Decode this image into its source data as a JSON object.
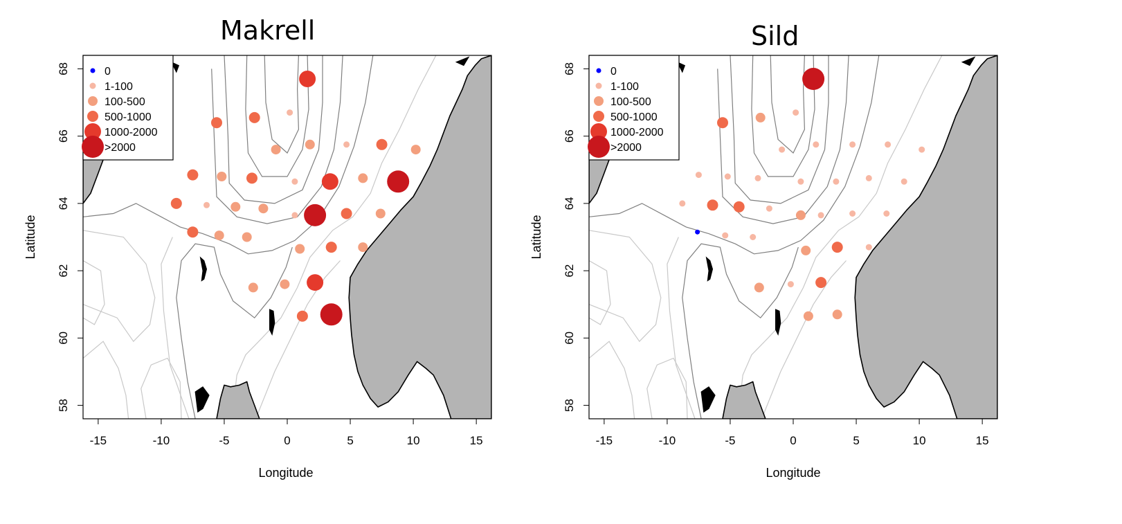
{
  "axes": {
    "xlabel": "Longitude",
    "ylabel": "Latitude",
    "xticks": [
      -15,
      -10,
      -5,
      0,
      5,
      10,
      15
    ],
    "yticks": [
      58,
      60,
      62,
      64,
      66,
      68
    ],
    "xlim": [
      -16.2,
      16.2
    ],
    "ylim": [
      57.6,
      68.4
    ]
  },
  "legend": {
    "position": "top-left",
    "entries": [
      "0",
      "1-100",
      "100-500",
      "500-1000",
      "1000-2000",
      ">2000"
    ]
  },
  "colors": {
    "class_colors": [
      "#0000ff",
      "#f7b7a3",
      "#f39f7e",
      "#f06a4a",
      "#e53a2c",
      "#c8171d"
    ],
    "land": "#b4b4b4",
    "depth_contour_dark": "#7f7f7f",
    "depth_contour_light": "#c8c8c8"
  },
  "maps": [
    {
      "title": "Makrell",
      "stations": [
        {
          "lon": 1.6,
          "lat": 67.7,
          "class": 4
        },
        {
          "lon": -2.6,
          "lat": 66.55,
          "class": 3
        },
        {
          "lon": 0.2,
          "lat": 66.7,
          "class": 1
        },
        {
          "lon": -5.6,
          "lat": 66.4,
          "class": 3
        },
        {
          "lon": -0.9,
          "lat": 65.6,
          "class": 2
        },
        {
          "lon": 1.8,
          "lat": 65.75,
          "class": 2
        },
        {
          "lon": 4.7,
          "lat": 65.75,
          "class": 1
        },
        {
          "lon": 7.5,
          "lat": 65.75,
          "class": 3
        },
        {
          "lon": 10.2,
          "lat": 65.6,
          "class": 2
        },
        {
          "lon": -7.5,
          "lat": 64.85,
          "class": 3
        },
        {
          "lon": -5.2,
          "lat": 64.8,
          "class": 2
        },
        {
          "lon": -2.8,
          "lat": 64.75,
          "class": 3
        },
        {
          "lon": 0.6,
          "lat": 64.65,
          "class": 1
        },
        {
          "lon": 3.4,
          "lat": 64.65,
          "class": 4
        },
        {
          "lon": 6.0,
          "lat": 64.75,
          "class": 2
        },
        {
          "lon": 8.8,
          "lat": 64.65,
          "class": 5
        },
        {
          "lon": -8.8,
          "lat": 64.0,
          "class": 3
        },
        {
          "lon": -6.4,
          "lat": 63.95,
          "class": 1
        },
        {
          "lon": -4.1,
          "lat": 63.9,
          "class": 2
        },
        {
          "lon": -1.9,
          "lat": 63.85,
          "class": 2
        },
        {
          "lon": 0.6,
          "lat": 63.65,
          "class": 1
        },
        {
          "lon": 2.2,
          "lat": 63.65,
          "class": 5
        },
        {
          "lon": 4.7,
          "lat": 63.7,
          "class": 3
        },
        {
          "lon": 7.4,
          "lat": 63.7,
          "class": 2
        },
        {
          "lon": -7.5,
          "lat": 63.15,
          "class": 3
        },
        {
          "lon": -5.4,
          "lat": 63.05,
          "class": 2
        },
        {
          "lon": -3.2,
          "lat": 63.0,
          "class": 2
        },
        {
          "lon": 1.0,
          "lat": 62.65,
          "class": 2
        },
        {
          "lon": 3.5,
          "lat": 62.7,
          "class": 3
        },
        {
          "lon": 6.0,
          "lat": 62.7,
          "class": 2
        },
        {
          "lon": -2.7,
          "lat": 61.5,
          "class": 2
        },
        {
          "lon": -0.2,
          "lat": 61.6,
          "class": 2
        },
        {
          "lon": 2.2,
          "lat": 61.65,
          "class": 4
        },
        {
          "lon": 1.2,
          "lat": 60.65,
          "class": 3
        },
        {
          "lon": 3.5,
          "lat": 60.7,
          "class": 5
        }
      ]
    },
    {
      "title": "Sild",
      "stations": [
        {
          "lon": 1.6,
          "lat": 67.7,
          "class": 5
        },
        {
          "lon": -2.6,
          "lat": 66.55,
          "class": 2
        },
        {
          "lon": 0.2,
          "lat": 66.7,
          "class": 1
        },
        {
          "lon": -5.6,
          "lat": 66.4,
          "class": 3
        },
        {
          "lon": -0.9,
          "lat": 65.6,
          "class": 1
        },
        {
          "lon": 1.8,
          "lat": 65.75,
          "class": 1
        },
        {
          "lon": 4.7,
          "lat": 65.75,
          "class": 1
        },
        {
          "lon": 7.5,
          "lat": 65.75,
          "class": 1
        },
        {
          "lon": 10.2,
          "lat": 65.6,
          "class": 1
        },
        {
          "lon": -7.5,
          "lat": 64.85,
          "class": 1
        },
        {
          "lon": -5.2,
          "lat": 64.8,
          "class": 1
        },
        {
          "lon": -2.8,
          "lat": 64.75,
          "class": 1
        },
        {
          "lon": 0.6,
          "lat": 64.65,
          "class": 1
        },
        {
          "lon": 3.4,
          "lat": 64.65,
          "class": 1
        },
        {
          "lon": 6.0,
          "lat": 64.75,
          "class": 1
        },
        {
          "lon": 8.8,
          "lat": 64.65,
          "class": 1
        },
        {
          "lon": -8.8,
          "lat": 64.0,
          "class": 1
        },
        {
          "lon": -6.4,
          "lat": 63.95,
          "class": 3
        },
        {
          "lon": -4.3,
          "lat": 63.9,
          "class": 3
        },
        {
          "lon": -1.9,
          "lat": 63.85,
          "class": 1
        },
        {
          "lon": 0.6,
          "lat": 63.65,
          "class": 2
        },
        {
          "lon": 2.2,
          "lat": 63.65,
          "class": 1
        },
        {
          "lon": 4.7,
          "lat": 63.7,
          "class": 1
        },
        {
          "lon": 7.4,
          "lat": 63.7,
          "class": 1
        },
        {
          "lon": -7.6,
          "lat": 63.15,
          "class": 0
        },
        {
          "lon": -5.4,
          "lat": 63.05,
          "class": 1
        },
        {
          "lon": -3.2,
          "lat": 63.0,
          "class": 1
        },
        {
          "lon": 1.0,
          "lat": 62.6,
          "class": 2
        },
        {
          "lon": 3.5,
          "lat": 62.7,
          "class": 3
        },
        {
          "lon": 6.0,
          "lat": 62.7,
          "class": 1
        },
        {
          "lon": -2.7,
          "lat": 61.5,
          "class": 2
        },
        {
          "lon": -0.2,
          "lat": 61.6,
          "class": 1
        },
        {
          "lon": 2.2,
          "lat": 61.65,
          "class": 3
        },
        {
          "lon": 1.2,
          "lat": 60.65,
          "class": 2
        },
        {
          "lon": 3.5,
          "lat": 60.7,
          "class": 2
        }
      ]
    }
  ]
}
